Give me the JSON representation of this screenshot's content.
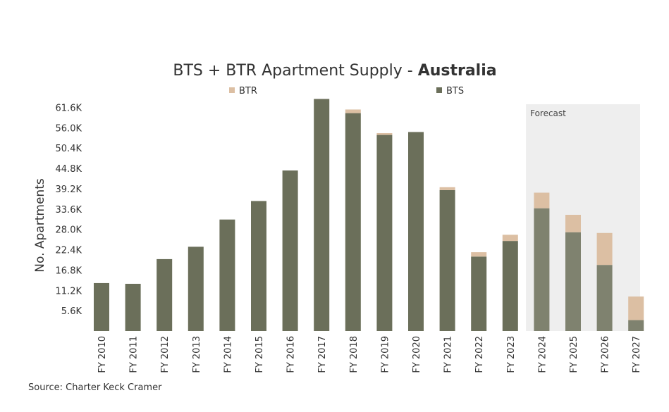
{
  "chart_data": {
    "type": "bar",
    "stacked": true,
    "title": "BTS + BTR Apartment Supply - ",
    "title_emphasis": "Australia",
    "ylabel": "No. Apartments",
    "xlabel": "",
    "y_ticks": [
      "5.6K",
      "11.2K",
      "16.8K",
      "22.4K",
      "28.0K",
      "33.6K",
      "39.2K",
      "44.8K",
      "50.4K",
      "56.0K",
      "61.6K"
    ],
    "y_tick_values": [
      5600,
      11200,
      16800,
      22400,
      28000,
      33600,
      39200,
      44800,
      50400,
      56000,
      61600
    ],
    "ylim": [
      0,
      64000
    ],
    "legend": "top-center",
    "categories": [
      "FY 2010",
      "FY 2011",
      "FY 2012",
      "FY 2013",
      "FY 2014",
      "FY 2015",
      "FY 2016",
      "FY 2017",
      "FY 2018",
      "FY 2019",
      "FY 2020",
      "FY 2021",
      "FY 2022",
      "FY 2023",
      "FY 2024",
      "FY 2025",
      "FY 2026",
      "FY 2027"
    ],
    "series": [
      {
        "name": "BTS",
        "values": [
          13200,
          13000,
          19800,
          23200,
          30700,
          35800,
          44200,
          63900,
          60000,
          54000,
          54800,
          38800,
          20500,
          24800,
          33800,
          27200,
          18200,
          3000
        ]
      },
      {
        "name": "BTR",
        "values": [
          0,
          0,
          0,
          0,
          0,
          0,
          0,
          0,
          1000,
          500,
          0,
          800,
          1200,
          1700,
          4300,
          4800,
          8800,
          6500
        ]
      }
    ],
    "colors": {
      "BTS": "#6b6f5a",
      "BTR": "#dcbfa3",
      "BTS_forecast": "#7f826f",
      "forecast_band": "#eeeeee"
    },
    "forecast": {
      "label": "Forecast",
      "from_category": "FY 2024"
    }
  },
  "source": "Source: Charter Keck Cramer"
}
